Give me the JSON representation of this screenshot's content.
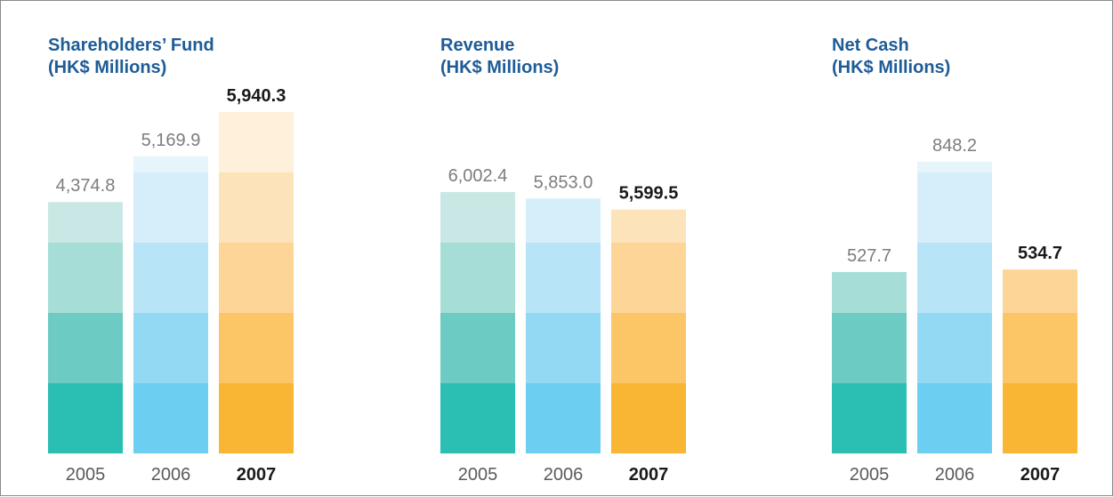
{
  "chart_data": [
    {
      "type": "bar",
      "title": [
        "Shareholders’ Fund",
        "(HK$ Millions)"
      ],
      "categories": [
        "2005",
        "2006",
        "2007"
      ],
      "values": [
        4374.8,
        5169.9,
        5940.3
      ],
      "value_labels": [
        "4,374.8",
        "5,169.9",
        "5,940.3"
      ],
      "highlight": "2007"
    },
    {
      "type": "bar",
      "title": [
        "Revenue",
        "(HK$ Millions)"
      ],
      "categories": [
        "2005",
        "2006",
        "2007"
      ],
      "values": [
        6002.4,
        5853.0,
        5599.5
      ],
      "value_labels": [
        "6,002.4",
        "5,853.0",
        "5,599.5"
      ],
      "highlight": "2007"
    },
    {
      "type": "bar",
      "title": [
        "Net Cash",
        "(HK$ Millions)"
      ],
      "categories": [
        "2005",
        "2006",
        "2007"
      ],
      "values": [
        527.7,
        848.2,
        534.7
      ],
      "value_labels": [
        "527.7",
        "848.2",
        "534.7"
      ],
      "highlight": "2007"
    }
  ],
  "colors": {
    "title": "#1e5c96",
    "series_2005": [
      "#2bbfb3",
      "#6ccbc3",
      "#a7ddd7",
      "#c9e8e5"
    ],
    "series_2006": [
      "#6ccff2",
      "#93d9f4",
      "#b8e4f7",
      "#d5eefa",
      "#e6f4fb"
    ],
    "series_2007": [
      "#f9b534",
      "#fcc565",
      "#fdd597",
      "#fde3ba",
      "#fef0da"
    ]
  }
}
